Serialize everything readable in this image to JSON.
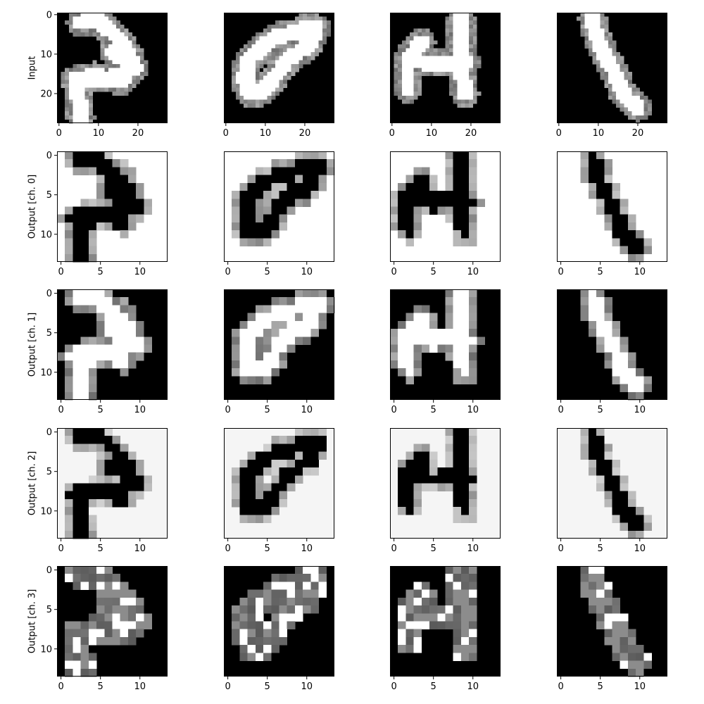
{
  "chart_data": {
    "type": "heatmap",
    "layout": {
      "rows": 5,
      "cols": 4
    },
    "colormap": "gray",
    "grid": false,
    "rows": [
      {
        "label": "Input",
        "size": 28,
        "ticks": [
          0,
          10,
          20
        ],
        "shows_y_ticks": true,
        "background": 0.0,
        "ink": 1.0,
        "edge": 0.55,
        "thickness": 2.6
      },
      {
        "label": "Output [ch. 0]",
        "size": 14,
        "ticks": [
          0,
          5,
          10
        ],
        "shows_y_ticks": true,
        "background": 1.0,
        "ink": 0.0,
        "edge": 0.65,
        "thickness": 1.35
      },
      {
        "label": "Output [ch. 1]",
        "size": 14,
        "ticks": [
          0,
          5,
          10
        ],
        "shows_y_ticks": true,
        "background": 0.0,
        "ink": 1.0,
        "edge": 0.55,
        "thickness": 1.35
      },
      {
        "label": "Output [ch. 2]",
        "size": 14,
        "ticks": [
          0,
          5,
          10
        ],
        "shows_y_ticks": true,
        "background": 0.96,
        "ink": 0.0,
        "edge": 0.7,
        "thickness": 1.25
      },
      {
        "label": "Output [ch. 3]",
        "size": 14,
        "ticks": [
          0,
          5,
          10
        ],
        "shows_y_ticks": true,
        "background": 0.0,
        "ink": 0.55,
        "edge": 0.2,
        "thickness": 1.25,
        "speckle": true
      }
    ],
    "digits": [
      {
        "digit": "5",
        "strokes": [
          [
            [
              5.0,
              17.5
            ],
            [
              6.0,
              26.5
            ]
          ],
          [
            [
              4.5,
              17.0
            ],
            [
              9.5,
              16.0
            ],
            [
              16.5,
              17.5
            ],
            [
              19.0,
              12.0
            ],
            [
              16.0,
              7.0
            ],
            [
              10.5,
              2.0
            ],
            [
              6.0,
              2.5
            ]
          ],
          [
            [
              4.5,
              17.5
            ],
            [
              13.5,
              16.5
            ],
            [
              20.0,
              14.0
            ],
            [
              14.0,
              10.0
            ]
          ]
        ]
      },
      {
        "digit": "0",
        "strokes": [
          [
            [
              5.0,
              16.0
            ],
            [
              6.5,
              20.5
            ],
            [
              10.0,
              20.0
            ],
            [
              13.5,
              15.5
            ],
            [
              16.5,
              11.5
            ],
            [
              21.5,
              8.5
            ],
            [
              23.5,
              4.0
            ],
            [
              21.0,
              3.5
            ],
            [
              18.5,
              5.0
            ],
            [
              13.5,
              6.0
            ],
            [
              10.0,
              8.5
            ],
            [
              6.0,
              12.0
            ],
            [
              5.5,
              17.0
            ]
          ]
        ]
      },
      {
        "digit": "4",
        "strokes": [
          [
            [
              4.5,
              19.5
            ],
            [
              4.5,
              11.5
            ],
            [
              8.0,
              7.5
            ]
          ],
          [
            [
              5.0,
              12.0
            ],
            [
              11.0,
              13.0
            ],
            [
              17.5,
              12.5
            ],
            [
              19.5,
              12.5
            ]
          ],
          [
            [
              19.0,
              20.5
            ],
            [
              18.0,
              13.0
            ],
            [
              18.0,
              1.0
            ]
          ]
        ]
      },
      {
        "digit": "1",
        "strokes": [
          [
            [
              20.5,
              24.0
            ],
            [
              17.0,
              21.0
            ],
            [
              15.0,
              16.0
            ],
            [
              12.0,
              10.5
            ],
            [
              10.0,
              6.0
            ],
            [
              9.0,
              1.5
            ]
          ]
        ]
      }
    ]
  }
}
